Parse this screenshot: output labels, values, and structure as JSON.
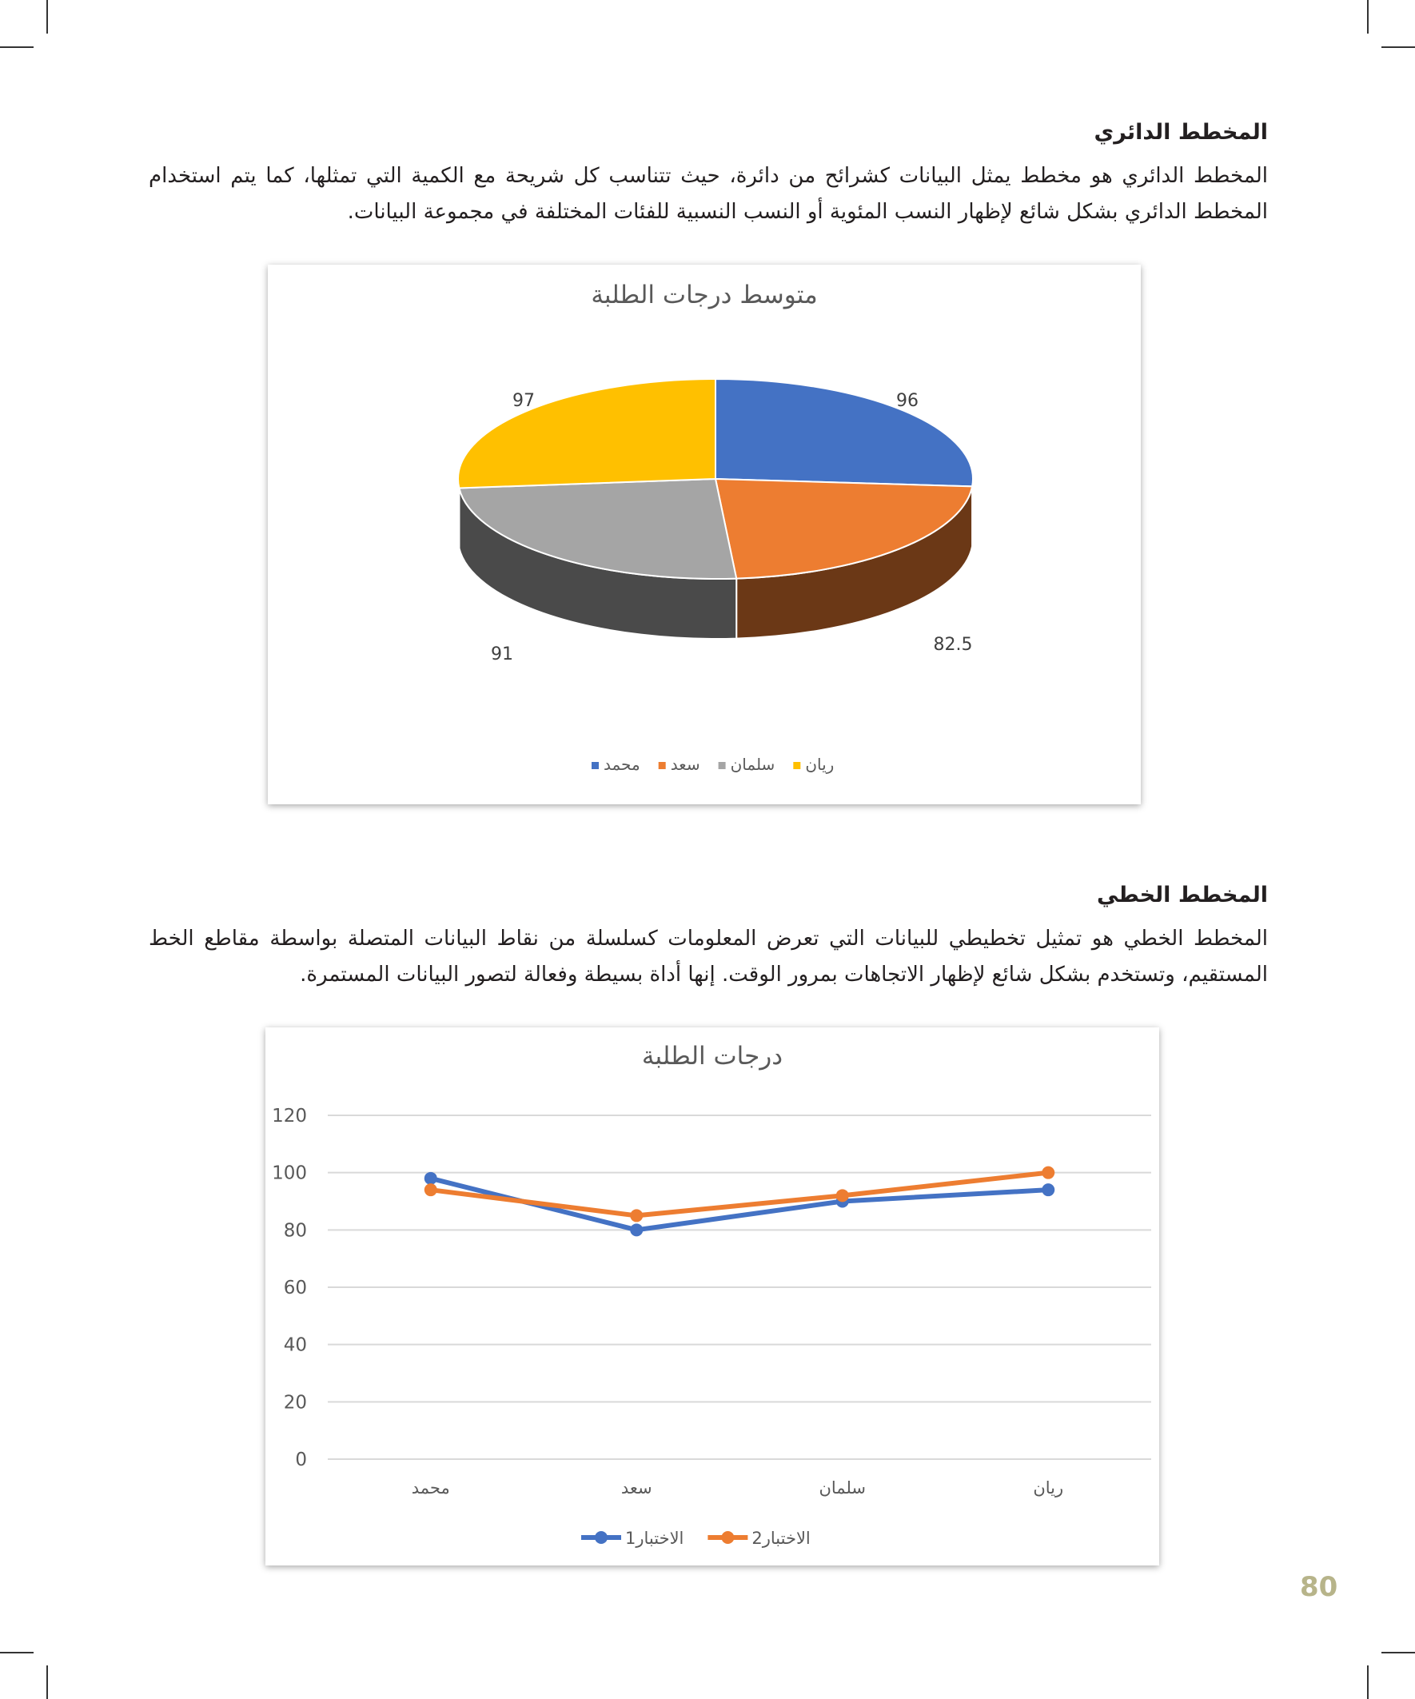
{
  "section1": {
    "heading": "المخطط الدائري",
    "paragraph": "المخطط الدائري هو مخطط يمثل البيانات كشرائح من دائرة، حيث تتناسب كل شريحة مع الكمية التي تمثلها، كما يتم استخدام المخطط الدائري بشكل شائع لإظهار النسب المئوية أو النسب النسبية للفئات المختلفة في مجموعة البيانات."
  },
  "section2": {
    "heading": "المخطط الخطي",
    "paragraph": "المخطط الخطي هو تمثيل تخطيطي للبيانات التي تعرض المعلومات كسلسلة من نقاط البيانات المتصلة بواسطة مقاطع الخط المستقيم، وتستخدم بشكل شائع لإظهار الاتجاهات بمرور الوقت. إنها أداة بسيطة وفعالة لتصور البيانات المستمرة."
  },
  "page_number": "80",
  "chart_data": [
    {
      "type": "pie",
      "title": "متوسط درجات الطلبة",
      "style": "3d",
      "categories": [
        "محمد",
        "سعد",
        "سلمان",
        "ريان"
      ],
      "values": [
        96,
        82.5,
        91,
        97
      ],
      "data_labels": [
        "96",
        "82.5",
        "91",
        "97"
      ],
      "colors": [
        "#4472c4",
        "#ed7d31",
        "#a5a5a5",
        "#ffc000"
      ],
      "legend": "bottom"
    },
    {
      "type": "line",
      "title": "درجات الطلبة",
      "categories": [
        "محمد",
        "سعد",
        "سلمان",
        "ريان"
      ],
      "series": [
        {
          "name": "الاختبار1",
          "values": [
            98,
            80,
            90,
            94
          ],
          "color": "#4472c4"
        },
        {
          "name": "الاختبار2",
          "values": [
            94,
            85,
            92,
            100
          ],
          "color": "#ed7d31"
        }
      ],
      "ylim": [
        0,
        120
      ],
      "yticks": [
        "0",
        "20",
        "40",
        "60",
        "80",
        "100",
        "120"
      ],
      "grid": true,
      "legend": "bottom"
    }
  ]
}
